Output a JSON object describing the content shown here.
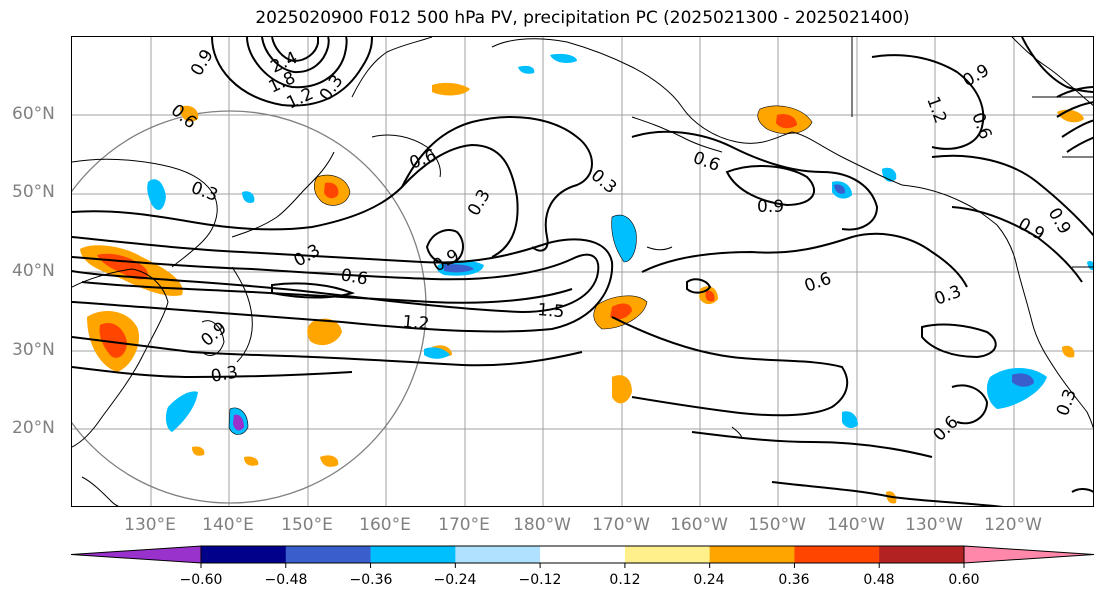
{
  "title": "2025020900 F012 500 hPa PV, precipitation PC (2025021300 - 2025021400)",
  "lat_labels": [
    "60°N",
    "50°N",
    "40°N",
    "30°N",
    "20°N"
  ],
  "lon_labels": [
    "130°E",
    "140°E",
    "150°E",
    "160°E",
    "170°E",
    "180°W",
    "170°W",
    "160°W",
    "150°W",
    "140°W",
    "130°W",
    "120°W"
  ],
  "contour_labels": [
    "2.4",
    "1.8",
    "1.2",
    "0.9",
    "0.6",
    "0.3",
    "0.3",
    "0.6",
    "0.3",
    "0.9",
    "0.3",
    "0.6",
    "1.2",
    "1.5",
    "0.3",
    "0.9",
    "0.3",
    "0.6",
    "0.9",
    "0.6",
    "0.3",
    "1.2",
    "0.9",
    "0.6",
    "0.9",
    "0.9",
    "0.3",
    "0.6"
  ],
  "colorbar": {
    "ticks": [
      "−0.60",
      "−0.48",
      "−0.36",
      "−0.24",
      "−0.12",
      "0.12",
      "0.24",
      "0.36",
      "0.48",
      "0.60"
    ],
    "colors": [
      "#9932cc",
      "#00008b",
      "#3a5fcd",
      "#00bfff",
      "#b0e2ff",
      "#ffffff",
      "#fff08c",
      "#ffa500",
      "#ff4500",
      "#b22222",
      "#ff88aa"
    ]
  },
  "colors": {
    "contour": "#000000",
    "grid": "#a0a0a0",
    "labels": "#808080",
    "circle": "#808080"
  }
}
